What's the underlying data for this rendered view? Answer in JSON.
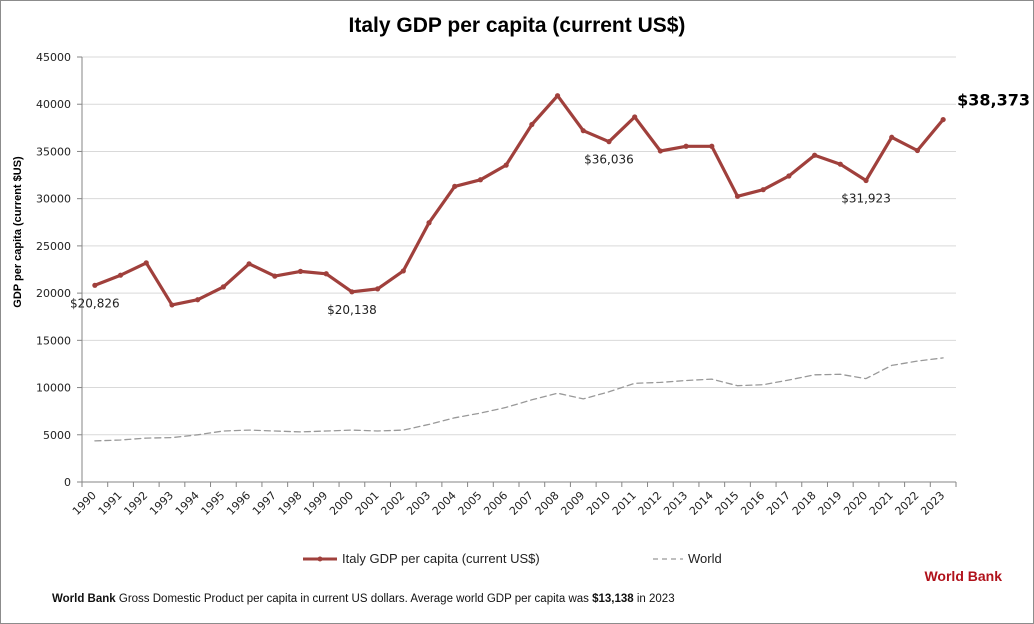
{
  "chart_data": {
    "type": "line",
    "title": "Italy GDP per capita (current US$)",
    "xlabel": "",
    "ylabel": "GDP per capita (current $US)",
    "ylim": [
      0,
      45000
    ],
    "yticks": [
      0,
      5000,
      10000,
      15000,
      20000,
      25000,
      30000,
      35000,
      40000,
      45000
    ],
    "grid": true,
    "legend_position": "bottom",
    "x": [
      "1990",
      "1991",
      "1992",
      "1993",
      "1994",
      "1995",
      "1996",
      "1997",
      "1998",
      "1999",
      "2000",
      "2001",
      "2002",
      "2003",
      "2004",
      "2005",
      "2006",
      "2007",
      "2008",
      "2009",
      "2010",
      "2011",
      "2012",
      "2013",
      "2014",
      "2015",
      "2016",
      "2017",
      "2018",
      "2019",
      "2020",
      "2021",
      "2022",
      "2023"
    ],
    "series": [
      {
        "name": "Italy GDP per capita (current US$)",
        "color": "#a0403c",
        "style": "solid-markers",
        "values": [
          20826,
          21900,
          23200,
          18750,
          19300,
          20660,
          23100,
          21800,
          22300,
          22050,
          20138,
          20450,
          22350,
          27450,
          31300,
          32000,
          33550,
          37850,
          40900,
          37200,
          36036,
          38650,
          35050,
          35550,
          35550,
          30250,
          30950,
          32400,
          34600,
          33650,
          31923,
          36500,
          35100,
          38373
        ]
      },
      {
        "name": "World",
        "color": "#999999",
        "style": "dashed",
        "values": [
          4350,
          4450,
          4650,
          4700,
          5000,
          5400,
          5500,
          5400,
          5300,
          5400,
          5500,
          5400,
          5500,
          6100,
          6800,
          7300,
          7900,
          8700,
          9400,
          8800,
          9550,
          10450,
          10550,
          10750,
          10900,
          10200,
          10300,
          10800,
          11350,
          11400,
          10950,
          12350,
          12800,
          13138
        ]
      }
    ],
    "annotations": [
      {
        "x": "1990",
        "series": 0,
        "text": "$20,826"
      },
      {
        "x": "2000",
        "series": 0,
        "text": "$20,138"
      },
      {
        "x": "2010",
        "series": 0,
        "text": "$36,036"
      },
      {
        "x": "2020",
        "series": 0,
        "text": "$31,923"
      },
      {
        "x": "2023",
        "series": 0,
        "text": "$38,373",
        "emphasis": true
      }
    ]
  },
  "legend": {
    "italy_label": "Italy GDP per capita (current US$)",
    "world_label": "World"
  },
  "brand": "World Bank",
  "footnote": {
    "source": "World Bank",
    "text": "Gross Domestic Product per capita in current US dollars.   Average world GDP per capita was ",
    "value": "$13,138",
    "suffix": " in 2023"
  }
}
